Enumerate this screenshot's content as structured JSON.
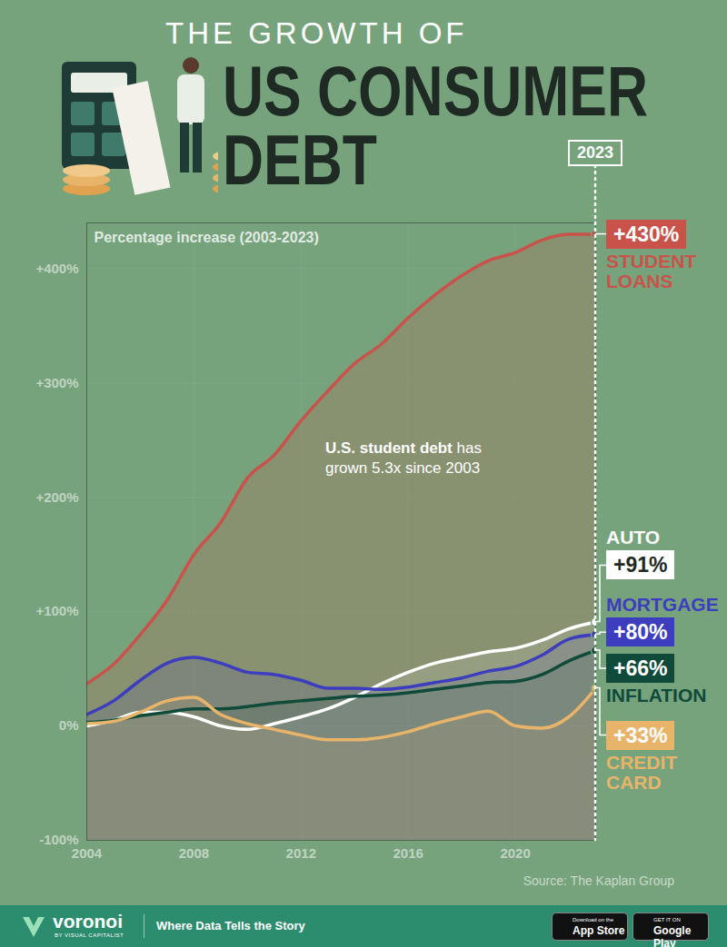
{
  "chart_data": {
    "type": "line",
    "kicker": "THE GROWTH OF",
    "title": [
      "US CONSUMER",
      "DEBT"
    ],
    "subtitle": "Percentage increase (2003-2023)",
    "annotation": [
      "U.S. student debt",
      "has grown 5.3x since 2003"
    ],
    "source": "Source: The Kaplan Group",
    "footer": {
      "brand": "voronoi",
      "brand_sub": "BY VISUAL CAPITALIST",
      "tagline": "Where Data Tells the Story",
      "app_store": [
        "Download on the",
        "App Store"
      ],
      "google_play": [
        "GET IT ON",
        "Google Play"
      ]
    },
    "x": [
      2004,
      2005,
      2006,
      2007,
      2008,
      2009,
      2010,
      2011,
      2012,
      2013,
      2014,
      2015,
      2016,
      2017,
      2018,
      2019,
      2020,
      2021,
      2022,
      2023
    ],
    "xlim": [
      2004,
      2023
    ],
    "xticks": [
      2004,
      2008,
      2012,
      2016,
      2020
    ],
    "ylim": [
      -100,
      440
    ],
    "yticks": [
      {
        "value": -100,
        "label": "-100%"
      },
      {
        "value": 0,
        "label": "0%"
      },
      {
        "value": 100,
        "label": "+100%"
      },
      {
        "value": 200,
        "label": "+200%"
      },
      {
        "value": 300,
        "label": "+300%"
      },
      {
        "value": 400,
        "label": "+400%"
      }
    ],
    "grid": true,
    "data_labels": true,
    "series": [
      {
        "name": "STUDENT LOANS",
        "color": "#c9524a",
        "values": [
          37,
          54,
          80,
          110,
          150,
          178,
          217,
          237,
          267,
          293,
          317,
          334,
          357,
          377,
          394,
          407,
          414,
          425,
          430,
          430
        ],
        "value_labels": [
          null,
          null,
          null,
          null,
          null,
          null,
          null,
          null,
          null,
          null,
          null,
          null,
          null,
          null,
          null,
          null,
          null,
          null,
          null,
          "+430%"
        ]
      },
      {
        "name": "AUTO",
        "color": "#ffffff",
        "values": [
          0,
          5,
          12,
          12,
          8,
          0,
          -3,
          2,
          8,
          15,
          25,
          37,
          47,
          55,
          60,
          65,
          68,
          75,
          85,
          91
        ],
        "value_labels": [
          null,
          null,
          null,
          null,
          null,
          null,
          null,
          null,
          null,
          null,
          null,
          null,
          null,
          null,
          null,
          null,
          null,
          null,
          null,
          "+91%"
        ]
      },
      {
        "name": "MORTGAGE",
        "color": "#3d3dbf",
        "values": [
          10,
          22,
          40,
          55,
          60,
          55,
          47,
          45,
          40,
          33,
          33,
          32,
          34,
          38,
          42,
          48,
          52,
          62,
          76,
          80
        ],
        "value_labels": [
          null,
          null,
          null,
          null,
          null,
          null,
          null,
          null,
          null,
          null,
          null,
          null,
          null,
          null,
          null,
          null,
          null,
          null,
          null,
          "+80%"
        ]
      },
      {
        "name": "INFLATION",
        "color": "#0f4a3a",
        "values": [
          3,
          5,
          9,
          12,
          15,
          15,
          17,
          20,
          22,
          24,
          26,
          27,
          29,
          32,
          35,
          38,
          39,
          45,
          57,
          66
        ],
        "value_labels": [
          null,
          null,
          null,
          null,
          null,
          null,
          null,
          null,
          null,
          null,
          null,
          null,
          null,
          null,
          null,
          null,
          null,
          null,
          null,
          "+66%"
        ]
      },
      {
        "name": "CREDIT CARD",
        "color": "#e8b46a",
        "values": [
          2,
          4,
          12,
          22,
          25,
          10,
          2,
          -3,
          -8,
          -12,
          -12,
          -10,
          -5,
          2,
          8,
          13,
          0,
          -2,
          8,
          33
        ],
        "value_labels": [
          null,
          null,
          null,
          null,
          null,
          null,
          null,
          null,
          null,
          null,
          null,
          null,
          null,
          null,
          null,
          null,
          null,
          null,
          null,
          "+33%"
        ]
      }
    ]
  }
}
